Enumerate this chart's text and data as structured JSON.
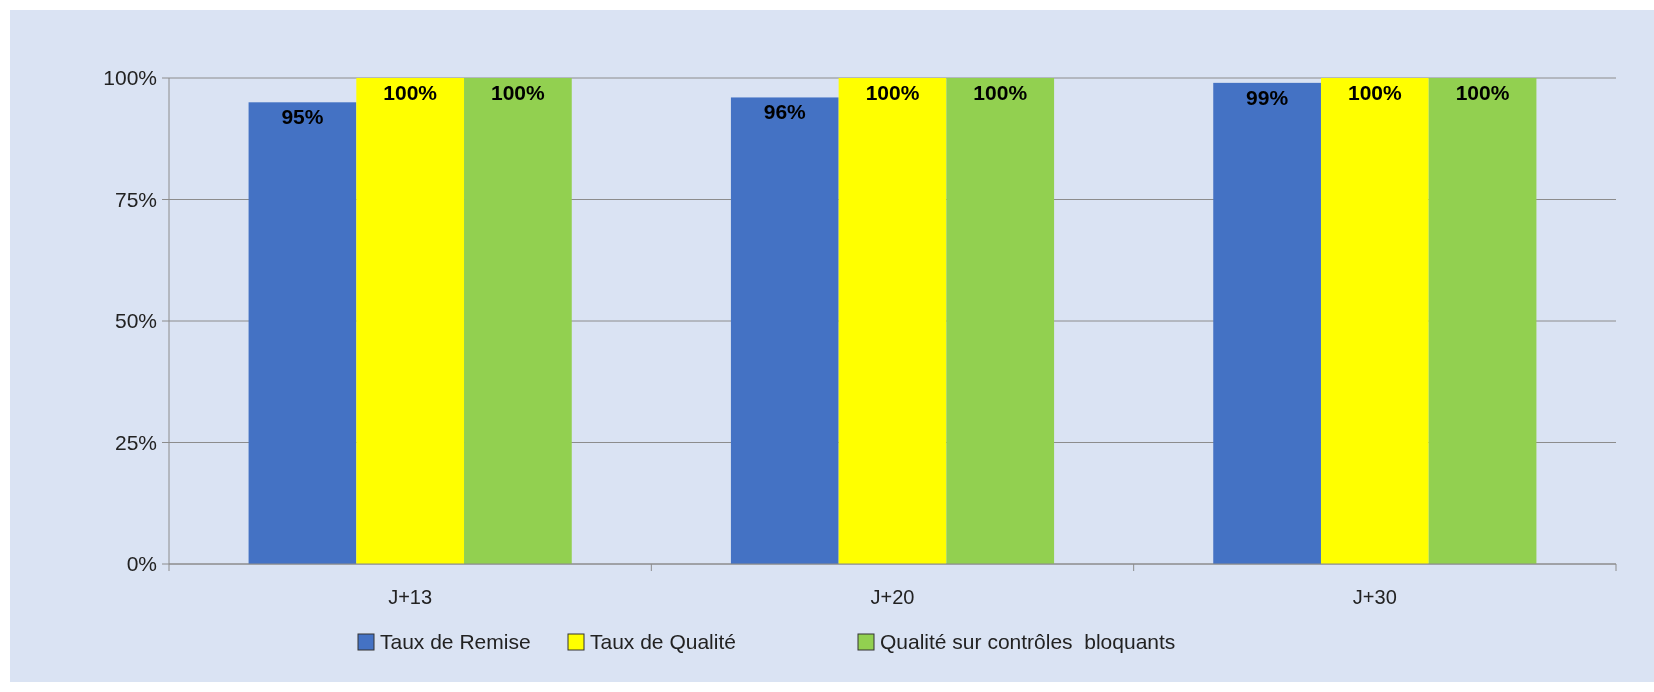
{
  "chart_data": {
    "type": "bar",
    "categories": [
      "J+13",
      "J+20",
      "J+30"
    ],
    "series": [
      {
        "name": "Taux de Remise",
        "color": "#4472c4",
        "values": [
          95,
          96,
          99
        ],
        "value_labels": [
          "95%",
          "96%",
          "99%"
        ]
      },
      {
        "name": "Taux de Qualité",
        "color": "#ffff00",
        "values": [
          100,
          100,
          100
        ],
        "value_labels": [
          "100%",
          "100%",
          "100%"
        ]
      },
      {
        "name": "Qualité sur contrôles  bloquants",
        "color": "#92d050",
        "values": [
          100,
          100,
          100
        ],
        "value_labels": [
          "100%",
          "100%",
          "100%"
        ]
      }
    ],
    "ylim": [
      0,
      100
    ],
    "yticks": [
      {
        "value": 0,
        "label": "0%"
      },
      {
        "value": 25,
        "label": "25%"
      },
      {
        "value": 50,
        "label": "50%"
      },
      {
        "value": 75,
        "label": "75%"
      },
      {
        "value": 100,
        "label": "100%"
      }
    ],
    "grid": "y",
    "legend": "bottom"
  }
}
